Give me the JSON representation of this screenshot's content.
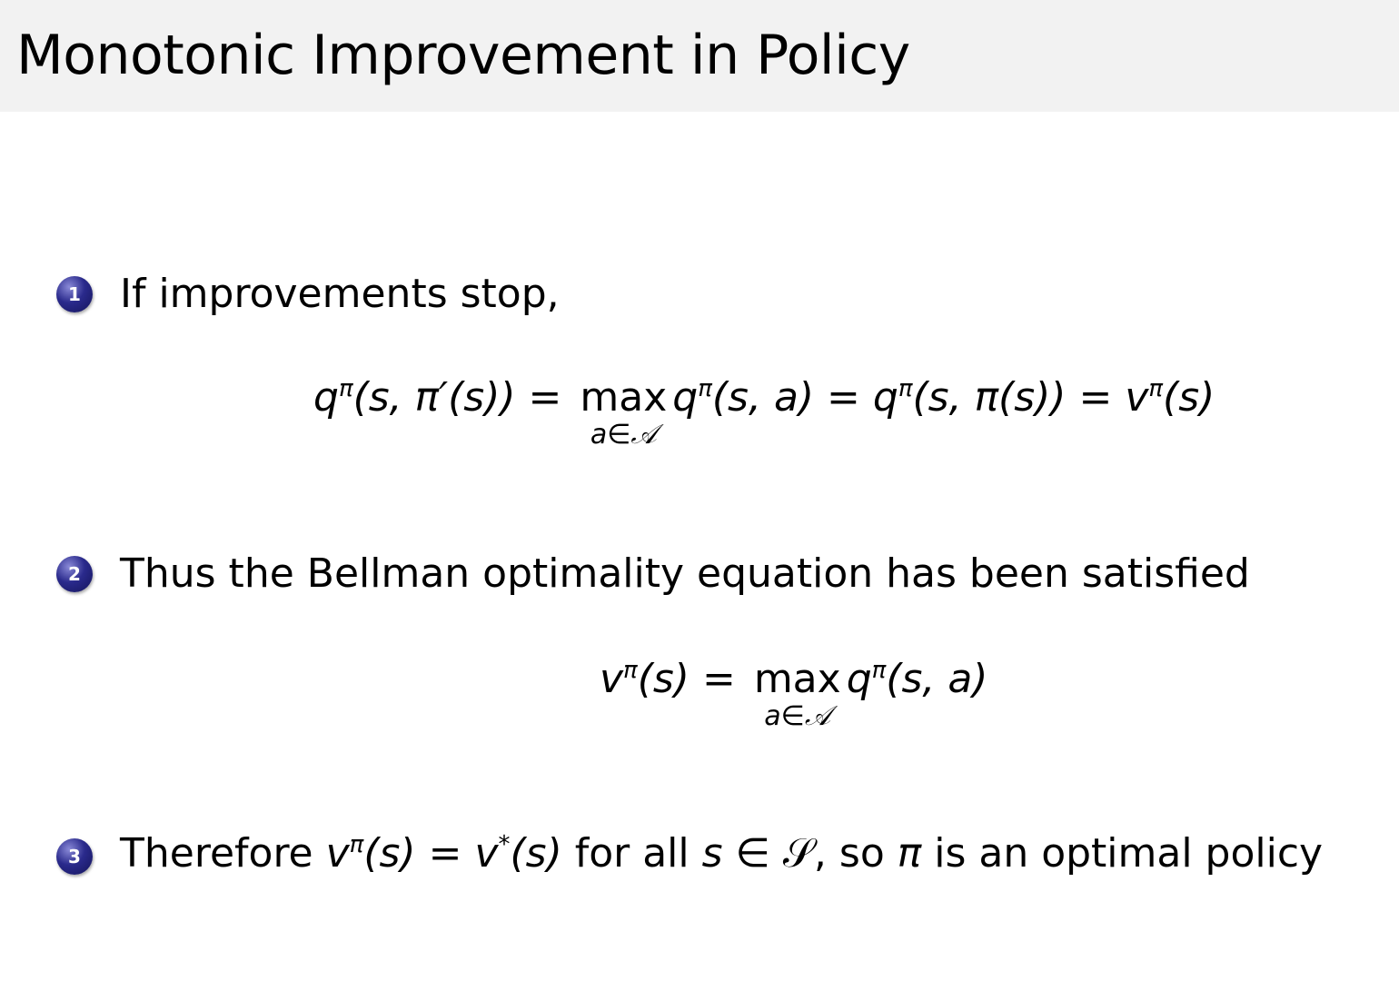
{
  "title": "Monotonic Improvement in Policy",
  "accent_color": "#2a2a8c",
  "items": [
    {
      "number": "1",
      "text": "If improvements stop,"
    },
    {
      "number": "2",
      "text": "Thus the Bellman optimality equation has been satisfied"
    },
    {
      "number": "3",
      "text": [
        {
          "t": "Therefore "
        },
        {
          "t": "v",
          "sup": "π",
          "math": true
        },
        {
          "t": "(s) = ",
          "math": true
        },
        {
          "t": "v",
          "sup": "*",
          "math": true
        },
        {
          "t": "(s)",
          "math": true
        },
        {
          "t": " for all "
        },
        {
          "t": "s",
          "math": true
        },
        {
          "t": " ∈ 𝒮, so "
        },
        {
          "t": "π",
          "math": true
        },
        {
          "t": " is an optimal policy"
        }
      ]
    }
  ],
  "equations": [
    [
      {
        "t": "q",
        "sup": "π"
      },
      {
        "t": "(s, π′(s)) = "
      },
      {
        "op": "max",
        "sub": "a∈𝒜"
      },
      {
        "t": "q",
        "sup": "π"
      },
      {
        "t": "(s, a) = "
      },
      {
        "t": "q",
        "sup": "π"
      },
      {
        "t": "(s, π(s)) = "
      },
      {
        "t": "v",
        "sup": "π"
      },
      {
        "t": "(s)"
      }
    ],
    [
      {
        "t": "v",
        "sup": "π"
      },
      {
        "t": "(s) = "
      },
      {
        "op": "max",
        "sub": "a∈𝒜"
      },
      {
        "t": "q",
        "sup": "π"
      },
      {
        "t": "(s, a)"
      }
    ]
  ]
}
